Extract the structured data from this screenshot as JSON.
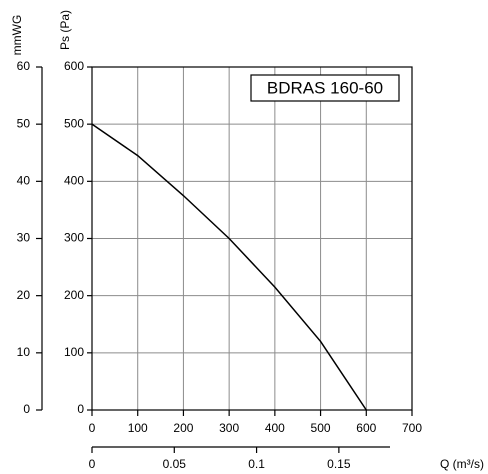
{
  "chart_data": {
    "type": "line",
    "annotation": "BDRAS 160-60",
    "y_label": "Ps (Pa)",
    "y2_label": "mmWG",
    "x2_label": "Q (m³/s)",
    "x": [
      0,
      100,
      200,
      300,
      400,
      500,
      600
    ],
    "series": [
      {
        "color": "#000000",
        "values": [
          500,
          445,
          375,
          300,
          215,
          120,
          0
        ]
      }
    ],
    "xlim": [
      0,
      700
    ],
    "xticks": [
      0,
      100,
      200,
      300,
      400,
      500,
      600,
      700
    ],
    "ylim": [
      0,
      600
    ],
    "yticks": [
      0,
      100,
      200,
      300,
      400,
      500,
      600
    ],
    "y2lim": [
      0,
      60
    ],
    "y2ticks": [
      0,
      10,
      20,
      30,
      40,
      50,
      60
    ],
    "x2lim": [
      0,
      0.19444
    ],
    "x2ticks": [
      0,
      0.05,
      0.1,
      0.15
    ],
    "grid": true
  }
}
